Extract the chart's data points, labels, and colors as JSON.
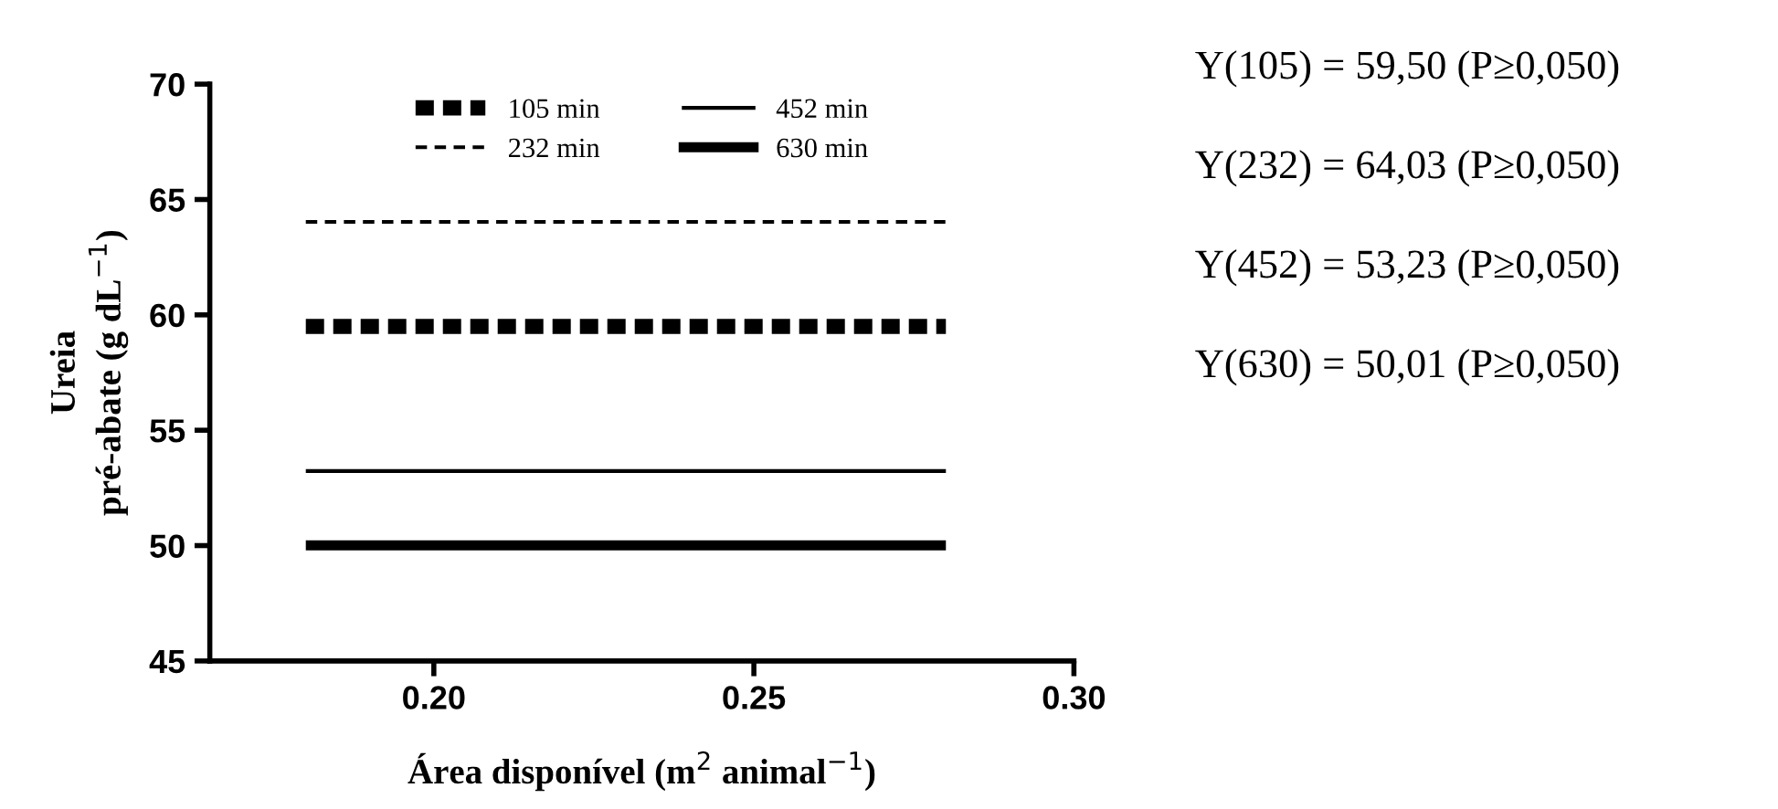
{
  "chart_data": {
    "type": "line",
    "xlabel": "Área disponível (m$^{2}$ animal$^{−1}$)",
    "ylabel": "Ureia\npré-abate (g dL$^{−1}$)",
    "x": [
      0.18,
      0.28
    ],
    "series": [
      {
        "name": "105 min",
        "color": "#000000",
        "line_style": "dashed",
        "values": [
          59.5,
          59.5
        ]
      },
      {
        "name": "232 min",
        "color": "#000000",
        "line_style": "dashed",
        "values": [
          64.03,
          64.03
        ]
      },
      {
        "name": "452 min",
        "color": "#000000",
        "line_style": "solid",
        "values": [
          53.23,
          53.23
        ]
      },
      {
        "name": "630 min",
        "color": "#000000",
        "line_style": "solid",
        "values": [
          50.01,
          50.01
        ]
      }
    ],
    "xlim": [
      0.165,
      0.3
    ],
    "xticks": [
      {
        "value": 0.2,
        "label": "0.20"
      },
      {
        "value": 0.25,
        "label": "0.25"
      },
      {
        "value": 0.3,
        "label": "0.30"
      }
    ],
    "ylim": [
      45,
      70
    ],
    "yticks": [
      45,
      50,
      55,
      60,
      65,
      70
    ],
    "grid": false,
    "legend": "top",
    "marker": "none",
    "annotations": [
      "Y(105) = 59,50 (P≥0,050)",
      "Y(232) = 64,03 (P≥0,050)",
      "Y(452) = 53,23 (P≥0,050)",
      "Y(630) = 50,01 (P≥0,050)"
    ]
  }
}
